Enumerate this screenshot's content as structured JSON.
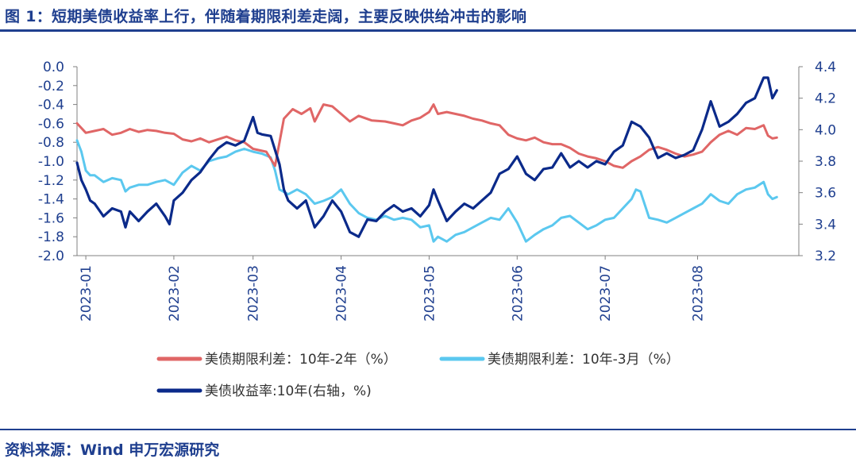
{
  "figure": {
    "title": "图 1：短期美债收益率上行，伴随着期限利差走阔，主要反映供给冲击的影响",
    "source": "资料来源：Wind  申万宏源研究"
  },
  "colors": {
    "spread_10y2y": "#e06666",
    "spread_10y3m": "#5bc8ef",
    "yield_10y": "#0b2a8a",
    "axis_text": "#1f3f8f",
    "rule": "#1f3f8f"
  },
  "chart_data": {
    "type": "line",
    "left_axis": {
      "ylim": [
        -2.0,
        0.0
      ],
      "ticks": [
        "0.0",
        "-0.2",
        "-0.4",
        "-0.6",
        "-0.8",
        "-1.0",
        "-1.2",
        "-1.4",
        "-1.6",
        "-1.8",
        "-2.0"
      ]
    },
    "right_axis": {
      "ylim": [
        3.2,
        4.4
      ],
      "ticks": [
        "4.4",
        "4.2",
        "4.0",
        "3.8",
        "3.6",
        "3.4",
        "3.2"
      ]
    },
    "x_range": [
      0,
      8.2
    ],
    "x_ticks": [
      {
        "label": "2023-01",
        "x": 0.1
      },
      {
        "label": "2023-02",
        "x": 1.1
      },
      {
        "label": "2023-03",
        "x": 2.0
      },
      {
        "label": "2023-04",
        "x": 3.0
      },
      {
        "label": "2023-05",
        "x": 4.0
      },
      {
        "label": "2023-06",
        "x": 5.0
      },
      {
        "label": "2023-07",
        "x": 6.0
      },
      {
        "label": "2023-08",
        "x": 7.05
      }
    ],
    "series": [
      {
        "name": "美债期限利差：10年-2年（%）",
        "axis": "left",
        "color": "#e06666",
        "points": [
          [
            0.0,
            -0.6
          ],
          [
            0.1,
            -0.7
          ],
          [
            0.2,
            -0.68
          ],
          [
            0.3,
            -0.66
          ],
          [
            0.4,
            -0.72
          ],
          [
            0.5,
            -0.7
          ],
          [
            0.6,
            -0.66
          ],
          [
            0.7,
            -0.69
          ],
          [
            0.8,
            -0.67
          ],
          [
            0.9,
            -0.68
          ],
          [
            1.0,
            -0.7
          ],
          [
            1.1,
            -0.71
          ],
          [
            1.2,
            -0.77
          ],
          [
            1.3,
            -0.79
          ],
          [
            1.4,
            -0.76
          ],
          [
            1.5,
            -0.8
          ],
          [
            1.6,
            -0.77
          ],
          [
            1.7,
            -0.74
          ],
          [
            1.8,
            -0.78
          ],
          [
            1.9,
            -0.8
          ],
          [
            2.0,
            -0.87
          ],
          [
            2.15,
            -0.9
          ],
          [
            2.25,
            -1.05
          ],
          [
            2.3,
            -0.8
          ],
          [
            2.35,
            -0.55
          ],
          [
            2.45,
            -0.45
          ],
          [
            2.55,
            -0.5
          ],
          [
            2.65,
            -0.44
          ],
          [
            2.7,
            -0.58
          ],
          [
            2.8,
            -0.4
          ],
          [
            2.9,
            -0.42
          ],
          [
            3.0,
            -0.5
          ],
          [
            3.1,
            -0.58
          ],
          [
            3.2,
            -0.52
          ],
          [
            3.35,
            -0.57
          ],
          [
            3.5,
            -0.58
          ],
          [
            3.6,
            -0.6
          ],
          [
            3.7,
            -0.62
          ],
          [
            3.8,
            -0.57
          ],
          [
            3.9,
            -0.54
          ],
          [
            4.0,
            -0.48
          ],
          [
            4.05,
            -0.4
          ],
          [
            4.1,
            -0.5
          ],
          [
            4.2,
            -0.48
          ],
          [
            4.3,
            -0.5
          ],
          [
            4.4,
            -0.52
          ],
          [
            4.5,
            -0.55
          ],
          [
            4.6,
            -0.57
          ],
          [
            4.7,
            -0.6
          ],
          [
            4.8,
            -0.62
          ],
          [
            4.9,
            -0.72
          ],
          [
            5.0,
            -0.76
          ],
          [
            5.1,
            -0.78
          ],
          [
            5.2,
            -0.75
          ],
          [
            5.3,
            -0.8
          ],
          [
            5.4,
            -0.82
          ],
          [
            5.5,
            -0.82
          ],
          [
            5.6,
            -0.86
          ],
          [
            5.7,
            -0.92
          ],
          [
            5.8,
            -0.95
          ],
          [
            5.9,
            -0.97
          ],
          [
            6.0,
            -1.0
          ],
          [
            6.1,
            -1.05
          ],
          [
            6.2,
            -1.07
          ],
          [
            6.3,
            -1.0
          ],
          [
            6.4,
            -0.95
          ],
          [
            6.5,
            -0.88
          ],
          [
            6.6,
            -0.85
          ],
          [
            6.7,
            -0.88
          ],
          [
            6.8,
            -0.92
          ],
          [
            6.9,
            -0.95
          ],
          [
            7.0,
            -0.93
          ],
          [
            7.1,
            -0.9
          ],
          [
            7.2,
            -0.8
          ],
          [
            7.3,
            -0.72
          ],
          [
            7.4,
            -0.68
          ],
          [
            7.5,
            -0.72
          ],
          [
            7.6,
            -0.65
          ],
          [
            7.7,
            -0.66
          ],
          [
            7.8,
            -0.62
          ],
          [
            7.85,
            -0.73
          ],
          [
            7.9,
            -0.76
          ],
          [
            7.95,
            -0.75
          ]
        ]
      },
      {
        "name": "美债期限利差：10年-3月（%）",
        "axis": "left",
        "color": "#5bc8ef",
        "points": [
          [
            0.0,
            -0.78
          ],
          [
            0.05,
            -0.9
          ],
          [
            0.1,
            -1.1
          ],
          [
            0.15,
            -1.15
          ],
          [
            0.2,
            -1.15
          ],
          [
            0.3,
            -1.22
          ],
          [
            0.4,
            -1.18
          ],
          [
            0.5,
            -1.2
          ],
          [
            0.55,
            -1.32
          ],
          [
            0.6,
            -1.28
          ],
          [
            0.7,
            -1.25
          ],
          [
            0.8,
            -1.25
          ],
          [
            0.9,
            -1.22
          ],
          [
            1.0,
            -1.2
          ],
          [
            1.1,
            -1.25
          ],
          [
            1.2,
            -1.12
          ],
          [
            1.3,
            -1.05
          ],
          [
            1.4,
            -1.1
          ],
          [
            1.5,
            -1.0
          ],
          [
            1.6,
            -0.97
          ],
          [
            1.7,
            -0.95
          ],
          [
            1.8,
            -0.9
          ],
          [
            1.9,
            -0.87
          ],
          [
            2.0,
            -0.9
          ],
          [
            2.1,
            -0.92
          ],
          [
            2.2,
            -0.96
          ],
          [
            2.25,
            -1.1
          ],
          [
            2.3,
            -1.3
          ],
          [
            2.4,
            -1.35
          ],
          [
            2.5,
            -1.3
          ],
          [
            2.6,
            -1.35
          ],
          [
            2.7,
            -1.45
          ],
          [
            2.8,
            -1.42
          ],
          [
            2.9,
            -1.38
          ],
          [
            3.0,
            -1.3
          ],
          [
            3.1,
            -1.45
          ],
          [
            3.2,
            -1.55
          ],
          [
            3.3,
            -1.6
          ],
          [
            3.4,
            -1.62
          ],
          [
            3.5,
            -1.58
          ],
          [
            3.6,
            -1.62
          ],
          [
            3.7,
            -1.6
          ],
          [
            3.8,
            -1.62
          ],
          [
            3.9,
            -1.7
          ],
          [
            4.0,
            -1.68
          ],
          [
            4.05,
            -1.85
          ],
          [
            4.1,
            -1.8
          ],
          [
            4.2,
            -1.85
          ],
          [
            4.3,
            -1.78
          ],
          [
            4.4,
            -1.75
          ],
          [
            4.5,
            -1.7
          ],
          [
            4.6,
            -1.65
          ],
          [
            4.7,
            -1.6
          ],
          [
            4.8,
            -1.62
          ],
          [
            4.9,
            -1.5
          ],
          [
            5.0,
            -1.65
          ],
          [
            5.1,
            -1.85
          ],
          [
            5.2,
            -1.78
          ],
          [
            5.3,
            -1.72
          ],
          [
            5.4,
            -1.68
          ],
          [
            5.5,
            -1.6
          ],
          [
            5.6,
            -1.58
          ],
          [
            5.7,
            -1.65
          ],
          [
            5.8,
            -1.72
          ],
          [
            5.9,
            -1.68
          ],
          [
            6.0,
            -1.62
          ],
          [
            6.1,
            -1.6
          ],
          [
            6.2,
            -1.5
          ],
          [
            6.3,
            -1.4
          ],
          [
            6.35,
            -1.3
          ],
          [
            6.4,
            -1.32
          ],
          [
            6.5,
            -1.6
          ],
          [
            6.6,
            -1.62
          ],
          [
            6.7,
            -1.65
          ],
          [
            6.8,
            -1.6
          ],
          [
            6.9,
            -1.55
          ],
          [
            7.0,
            -1.5
          ],
          [
            7.1,
            -1.45
          ],
          [
            7.2,
            -1.35
          ],
          [
            7.3,
            -1.42
          ],
          [
            7.4,
            -1.45
          ],
          [
            7.5,
            -1.35
          ],
          [
            7.6,
            -1.3
          ],
          [
            7.7,
            -1.28
          ],
          [
            7.8,
            -1.22
          ],
          [
            7.85,
            -1.35
          ],
          [
            7.9,
            -1.4
          ],
          [
            7.95,
            -1.38
          ]
        ]
      },
      {
        "name": "美债收益率:10年(右轴，%)",
        "axis": "right",
        "color": "#0b2a8a",
        "points": [
          [
            0.0,
            3.79
          ],
          [
            0.05,
            3.68
          ],
          [
            0.1,
            3.62
          ],
          [
            0.15,
            3.55
          ],
          [
            0.2,
            3.53
          ],
          [
            0.3,
            3.45
          ],
          [
            0.4,
            3.5
          ],
          [
            0.5,
            3.48
          ],
          [
            0.55,
            3.38
          ],
          [
            0.6,
            3.48
          ],
          [
            0.7,
            3.42
          ],
          [
            0.8,
            3.48
          ],
          [
            0.9,
            3.53
          ],
          [
            1.0,
            3.45
          ],
          [
            1.05,
            3.4
          ],
          [
            1.1,
            3.55
          ],
          [
            1.2,
            3.6
          ],
          [
            1.3,
            3.68
          ],
          [
            1.4,
            3.73
          ],
          [
            1.5,
            3.81
          ],
          [
            1.6,
            3.88
          ],
          [
            1.7,
            3.92
          ],
          [
            1.8,
            3.9
          ],
          [
            1.9,
            3.93
          ],
          [
            2.0,
            4.08
          ],
          [
            2.05,
            3.98
          ],
          [
            2.1,
            3.97
          ],
          [
            2.2,
            3.96
          ],
          [
            2.3,
            3.78
          ],
          [
            2.35,
            3.62
          ],
          [
            2.4,
            3.55
          ],
          [
            2.5,
            3.5
          ],
          [
            2.6,
            3.55
          ],
          [
            2.7,
            3.38
          ],
          [
            2.8,
            3.45
          ],
          [
            2.9,
            3.55
          ],
          [
            3.0,
            3.48
          ],
          [
            3.1,
            3.35
          ],
          [
            3.2,
            3.32
          ],
          [
            3.3,
            3.43
          ],
          [
            3.4,
            3.42
          ],
          [
            3.5,
            3.48
          ],
          [
            3.6,
            3.52
          ],
          [
            3.7,
            3.48
          ],
          [
            3.8,
            3.5
          ],
          [
            3.9,
            3.45
          ],
          [
            4.0,
            3.52
          ],
          [
            4.05,
            3.62
          ],
          [
            4.1,
            3.55
          ],
          [
            4.2,
            3.42
          ],
          [
            4.3,
            3.48
          ],
          [
            4.4,
            3.53
          ],
          [
            4.5,
            3.5
          ],
          [
            4.6,
            3.55
          ],
          [
            4.7,
            3.6
          ],
          [
            4.8,
            3.72
          ],
          [
            4.9,
            3.75
          ],
          [
            5.0,
            3.83
          ],
          [
            5.1,
            3.72
          ],
          [
            5.2,
            3.68
          ],
          [
            5.3,
            3.75
          ],
          [
            5.4,
            3.76
          ],
          [
            5.5,
            3.85
          ],
          [
            5.6,
            3.76
          ],
          [
            5.7,
            3.8
          ],
          [
            5.8,
            3.76
          ],
          [
            5.9,
            3.8
          ],
          [
            6.0,
            3.78
          ],
          [
            6.1,
            3.86
          ],
          [
            6.2,
            3.9
          ],
          [
            6.3,
            4.05
          ],
          [
            6.4,
            4.02
          ],
          [
            6.5,
            3.95
          ],
          [
            6.6,
            3.82
          ],
          [
            6.7,
            3.85
          ],
          [
            6.8,
            3.82
          ],
          [
            6.9,
            3.84
          ],
          [
            7.0,
            3.87
          ],
          [
            7.1,
            4.0
          ],
          [
            7.2,
            4.18
          ],
          [
            7.3,
            4.02
          ],
          [
            7.4,
            4.05
          ],
          [
            7.5,
            4.1
          ],
          [
            7.6,
            4.17
          ],
          [
            7.7,
            4.2
          ],
          [
            7.8,
            4.33
          ],
          [
            7.85,
            4.33
          ],
          [
            7.9,
            4.2
          ],
          [
            7.95,
            4.25
          ]
        ]
      }
    ]
  }
}
